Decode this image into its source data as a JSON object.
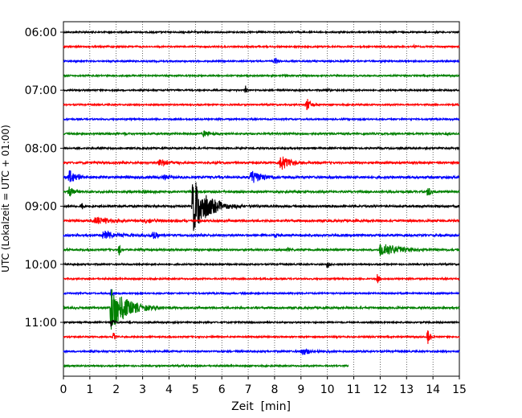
{
  "chart_data": {
    "type": "line",
    "title": "",
    "xlabel": "Zeit  [min]",
    "ylabel": "UTC (Lokalzeit = UTC + 01:00)",
    "xlim": [
      0,
      15
    ],
    "x_ticks": [
      "0",
      "1",
      "2",
      "3",
      "4",
      "5",
      "6",
      "7",
      "8",
      "9",
      "10",
      "11",
      "12",
      "13",
      "14",
      "15"
    ],
    "y_ticks": [
      {
        "row": 0,
        "label": "06:00"
      },
      {
        "row": 4,
        "label": "07:00"
      },
      {
        "row": 8,
        "label": "08:00"
      },
      {
        "row": 12,
        "label": "09:00"
      },
      {
        "row": 16,
        "label": "10:00"
      },
      {
        "row": 20,
        "label": "11:00"
      }
    ],
    "grid_x": true,
    "colors": [
      "#000000",
      "#ff0000",
      "#0000ff",
      "#008000"
    ],
    "traces": [
      {
        "start": "06:00",
        "noise": 0.9,
        "events": []
      },
      {
        "start": "06:15",
        "noise": 0.9,
        "events": [
          {
            "t": 13.3,
            "amp": 2,
            "dur": 0.3
          }
        ]
      },
      {
        "start": "06:30",
        "noise": 0.9,
        "events": [
          {
            "t": 8.0,
            "amp": 6,
            "dur": 0.15
          }
        ]
      },
      {
        "start": "06:45",
        "noise": 0.9,
        "events": []
      },
      {
        "start": "07:00",
        "noise": 0.9,
        "events": [
          {
            "t": 6.9,
            "amp": 8,
            "dur": 0.08
          },
          {
            "t": 10.0,
            "amp": 2,
            "dur": 0.2
          }
        ]
      },
      {
        "start": "07:15",
        "noise": 0.9,
        "events": [
          {
            "t": 9.2,
            "amp": 9,
            "dur": 0.3
          }
        ]
      },
      {
        "start": "07:30",
        "noise": 0.9,
        "events": []
      },
      {
        "start": "07:45",
        "noise": 1.1,
        "events": [
          {
            "t": 5.3,
            "amp": 5,
            "dur": 0.5
          },
          {
            "t": 2.3,
            "amp": 2,
            "dur": 0.3
          },
          {
            "t": 14.5,
            "amp": 2,
            "dur": 0.3
          }
        ]
      },
      {
        "start": "08:00",
        "noise": 1.0,
        "events": [
          {
            "t": 1.3,
            "amp": 2,
            "dur": 0.15
          }
        ]
      },
      {
        "start": "08:15",
        "noise": 1.2,
        "events": [
          {
            "t": 3.6,
            "amp": 6,
            "dur": 0.6
          },
          {
            "t": 8.2,
            "amp": 12,
            "dur": 0.6
          },
          {
            "t": 5.7,
            "amp": 2,
            "dur": 0.3
          }
        ]
      },
      {
        "start": "08:30",
        "noise": 1.4,
        "events": [
          {
            "t": 0.2,
            "amp": 11,
            "dur": 0.5
          },
          {
            "t": 7.1,
            "amp": 10,
            "dur": 0.7
          },
          {
            "t": 3.8,
            "amp": 3,
            "dur": 0.6
          }
        ]
      },
      {
        "start": "08:45",
        "noise": 1.2,
        "events": [
          {
            "t": 0.2,
            "amp": 8,
            "dur": 0.3
          },
          {
            "t": 13.8,
            "amp": 9,
            "dur": 0.2
          },
          {
            "t": 3.0,
            "amp": 2,
            "dur": 0.8
          }
        ]
      },
      {
        "start": "09:00",
        "noise": 1.2,
        "events": [
          {
            "t": 4.9,
            "amp": 38,
            "dur": 0.9
          },
          {
            "t": 0.7,
            "amp": 4,
            "dur": 0.15
          }
        ]
      },
      {
        "start": "09:15",
        "noise": 1.3,
        "events": [
          {
            "t": 1.2,
            "amp": 6,
            "dur": 1.0
          },
          {
            "t": 3.1,
            "amp": 4,
            "dur": 0.6
          }
        ]
      },
      {
        "start": "09:30",
        "noise": 1.3,
        "events": [
          {
            "t": 1.5,
            "amp": 6,
            "dur": 1.0
          },
          {
            "t": 3.4,
            "amp": 6,
            "dur": 0.4
          },
          {
            "t": 8.0,
            "amp": 3,
            "dur": 0.3
          }
        ]
      },
      {
        "start": "09:45",
        "noise": 1.1,
        "events": [
          {
            "t": 2.1,
            "amp": 8,
            "dur": 0.15
          },
          {
            "t": 2.9,
            "amp": 3,
            "dur": 0.1
          },
          {
            "t": 12.0,
            "amp": 10,
            "dur": 1.2
          },
          {
            "t": 8.5,
            "amp": 2,
            "dur": 0.3
          }
        ]
      },
      {
        "start": "10:00",
        "noise": 0.9,
        "events": [
          {
            "t": 10.0,
            "amp": 7,
            "dur": 0.15
          }
        ]
      },
      {
        "start": "10:15",
        "noise": 0.9,
        "events": [
          {
            "t": 11.9,
            "amp": 7,
            "dur": 0.15
          }
        ]
      },
      {
        "start": "10:30",
        "noise": 0.9,
        "events": [
          {
            "t": 1.8,
            "amp": 5,
            "dur": 0.2
          }
        ]
      },
      {
        "start": "10:45",
        "noise": 1.2,
        "events": [
          {
            "t": 1.8,
            "amp": 30,
            "dur": 1.0
          },
          {
            "t": 0.3,
            "amp": 2,
            "dur": 0.3
          }
        ]
      },
      {
        "start": "11:00",
        "noise": 0.9,
        "events": [
          {
            "t": 1.8,
            "amp": 5,
            "dur": 0.2
          }
        ]
      },
      {
        "start": "11:15",
        "noise": 0.9,
        "events": [
          {
            "t": 1.9,
            "amp": 8,
            "dur": 0.1
          },
          {
            "t": 13.8,
            "amp": 11,
            "dur": 0.15
          },
          {
            "t": 10.2,
            "amp": 2,
            "dur": 0.2
          }
        ]
      },
      {
        "start": "11:30",
        "noise": 1.0,
        "events": [
          {
            "t": 9.0,
            "amp": 5,
            "dur": 0.8
          }
        ]
      },
      {
        "start": "11:45",
        "noise": 0.9,
        "end_t": 10.8,
        "events": [
          {
            "t": 4.5,
            "amp": 2,
            "dur": 0.2
          }
        ]
      }
    ]
  }
}
